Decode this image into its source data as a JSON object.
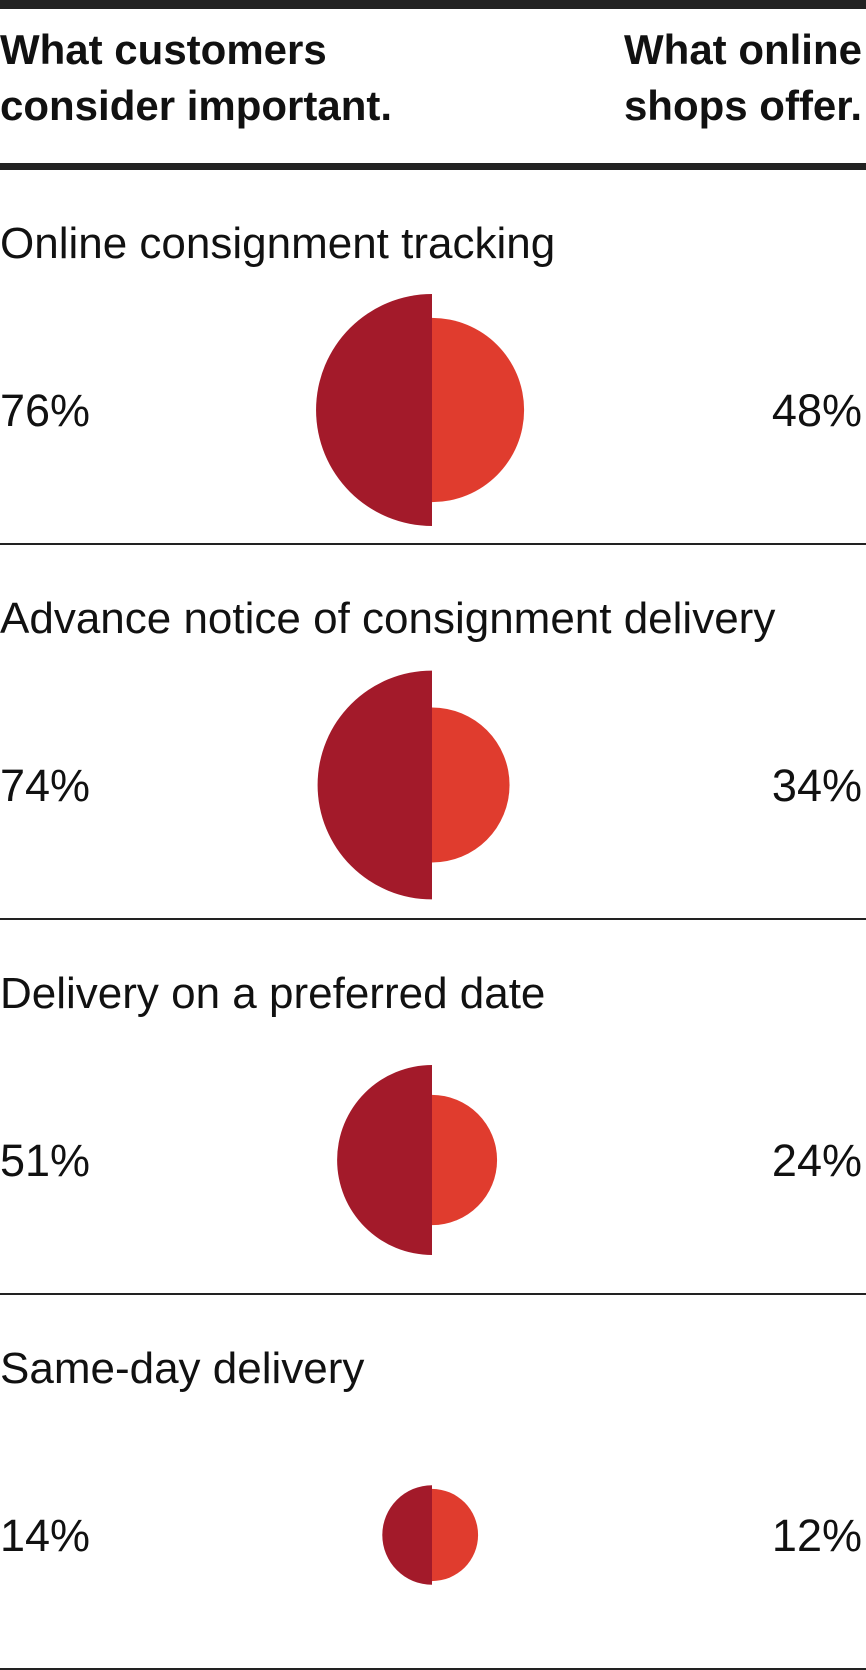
{
  "chart_data": {
    "type": "split-circle",
    "categories": [
      "Online consignment tracking",
      "Advance notice of consignment delivery",
      "Delivery on a preferred date",
      "Same-day delivery"
    ],
    "series": [
      {
        "name": "What customers consider important.",
        "color": "#a31a2a",
        "values": [
          76,
          74,
          51,
          14
        ],
        "value_labels": [
          "76%",
          "74%",
          "51%",
          "14%"
        ]
      },
      {
        "name": "What online shops offer.",
        "color": "#e03c2e",
        "values": [
          48,
          34,
          24,
          12
        ],
        "value_labels": [
          "48%",
          "34%",
          "24%",
          "12%"
        ]
      }
    ]
  }
}
